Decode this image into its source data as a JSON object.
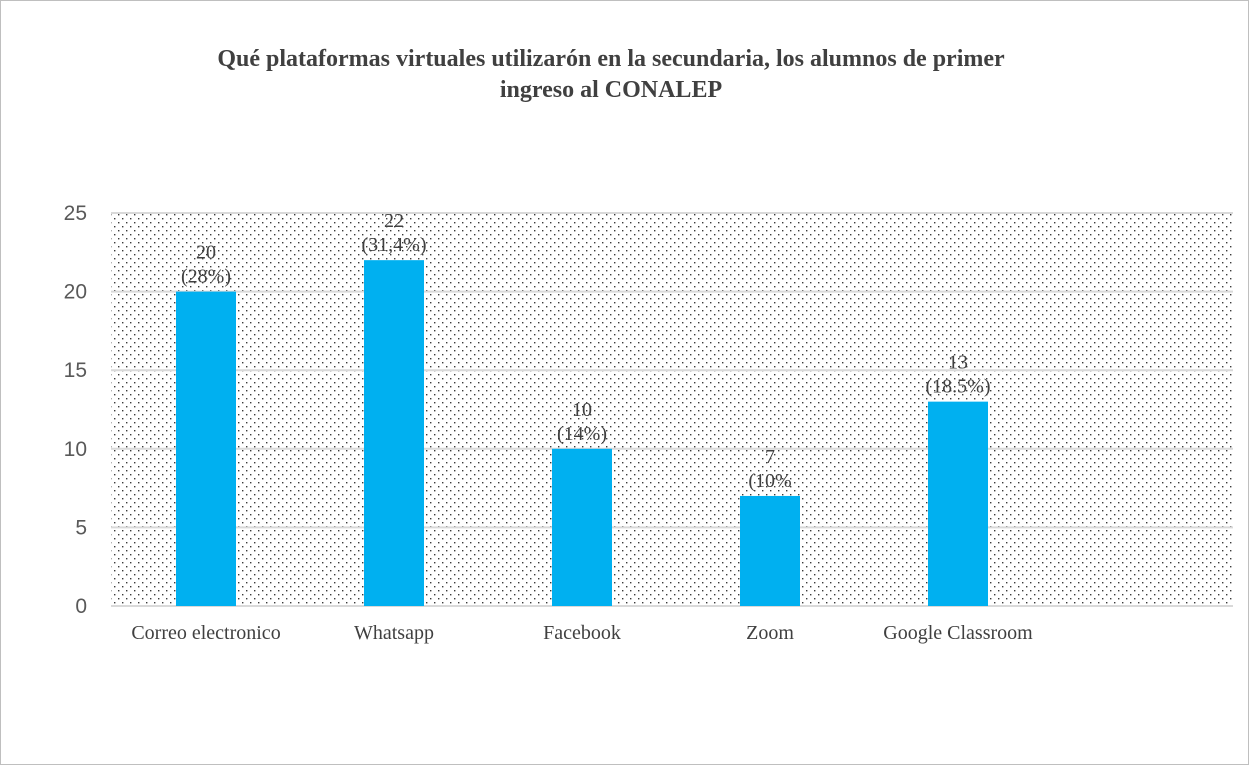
{
  "chart_data": {
    "type": "bar",
    "title_lines": [
      "Qué plataformas virtuales utilizarón  en la secundaria, los alumnos de primer",
      "ingreso al CONALEP"
    ],
    "categories": [
      "Correo electronico",
      "Whatsapp",
      "Facebook",
      "Zoom",
      "Google Classroom"
    ],
    "values": [
      20,
      22,
      10,
      7,
      13
    ],
    "data_labels": [
      [
        "20",
        "(28%)"
      ],
      [
        "22",
        "(31,4%)"
      ],
      [
        "10",
        "(14%)"
      ],
      [
        "7",
        "(10%"
      ],
      [
        "13",
        "(18.5%)"
      ]
    ],
    "ylim": [
      0,
      25
    ],
    "yticks": [
      "0",
      "5",
      "10",
      "15",
      "20",
      "25"
    ],
    "xlabel": "",
    "ylabel": "",
    "grid": true,
    "legend": "none",
    "bar_color": "#00b0f0",
    "plot_background": "dotted"
  }
}
